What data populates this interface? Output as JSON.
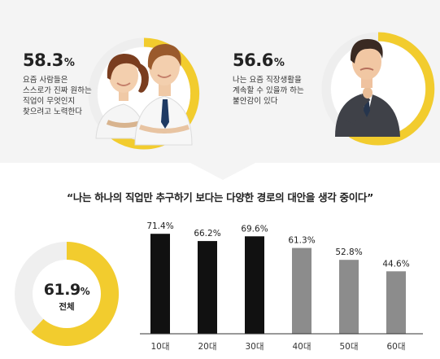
{
  "stats": [
    {
      "value": "58.3",
      "unit": "%",
      "lines": [
        "요즘 사람들은",
        "스스로가 진짜 원하는",
        "직업이 무엇인지",
        "찾으려고 노력한다"
      ]
    },
    {
      "value": "56.6",
      "unit": "%",
      "lines": [
        "나는 요즘 직장생활을",
        "계속할 수 있을까 하는",
        "불안감이 있다"
      ]
    }
  ],
  "headline": "“나는 하나의 직업만 추구하기 보다는 다양한 경로의 대안을 생각 중이다”",
  "pie": {
    "value": "61.9",
    "unit": "%",
    "label": "전체",
    "fraction": 0.619
  },
  "colors": {
    "accent": "#f2cc2e",
    "dark_bar": "#111111",
    "gray_bar": "#8c8c8c",
    "ring_bg": "#efefef"
  },
  "chart_data": {
    "type": "bar",
    "categories": [
      "10대",
      "20대",
      "30대",
      "40대",
      "50대",
      "60대"
    ],
    "values": [
      71.4,
      66.2,
      69.6,
      61.3,
      52.8,
      44.6
    ],
    "value_labels": [
      "71.4%",
      "66.2%",
      "69.6%",
      "61.3%",
      "52.8%",
      "44.6%"
    ],
    "highlighted": [
      true,
      true,
      true,
      false,
      false,
      false
    ],
    "ylim": [
      0,
      80
    ]
  }
}
